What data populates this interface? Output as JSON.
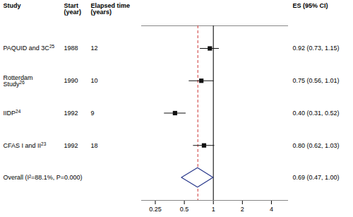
{
  "chart_data": {
    "type": "forest",
    "log": "x",
    "xlim": [
      0.18,
      6.0
    ],
    "xticks": [
      0.25,
      0.5,
      1,
      2,
      4
    ],
    "columns": [
      "Study",
      "Start\n(year)",
      "Elapsed time\n(years)",
      "ES (95% CI)"
    ],
    "color": "#111111",
    "studies": [
      {
        "label": "PAQUID and 3C",
        "superscript": "25",
        "start": 1988,
        "elapsed": 12,
        "es": 0.92,
        "ci_low": 0.73,
        "ci_high": 1.15,
        "value_label": "0.92 (0.73, 1.15)"
      },
      {
        "label": "Rotterdam\nStudy",
        "superscript": "26",
        "start": 1990,
        "elapsed": 10,
        "es": 0.75,
        "ci_low": 0.56,
        "ci_high": 1.01,
        "value_label": "0.75 (0.56, 1.01)"
      },
      {
        "label": "IIDP",
        "superscript": "24",
        "start": 1992,
        "elapsed": 9,
        "es": 0.4,
        "ci_low": 0.31,
        "ci_high": 0.52,
        "value_label": "0.40 (0.31, 0.52)"
      },
      {
        "label": "CFAS I and II",
        "superscript": "23",
        "start": 1992,
        "elapsed": 18,
        "es": 0.8,
        "ci_low": 0.62,
        "ci_high": 1.03,
        "value_label": "0.80 (0.62, 1.03)"
      }
    ],
    "overall": {
      "label": "Overall (I²=88.1%, P=0.000)",
      "es": 0.69,
      "ci_low": 0.47,
      "ci_high": 1.0,
      "value_label": "0.69 (0.47, 1.00)",
      "color": "#2b3a8c"
    },
    "reference_lines": [
      {
        "value": 1,
        "color": "#333333",
        "line_style": "solid"
      },
      {
        "value": 0.69,
        "color": "#cc3333",
        "line_style": "dashed"
      }
    ]
  }
}
